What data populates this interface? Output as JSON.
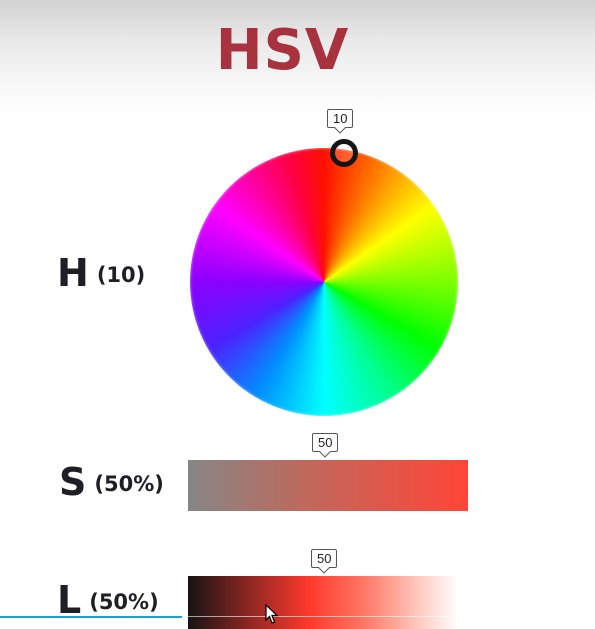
{
  "title": "HSV",
  "hue": {
    "letter": "H",
    "value_text": "(10)",
    "value": 10,
    "bubble": "10"
  },
  "saturation": {
    "letter": "S",
    "value_text": "(50%)",
    "value": 50,
    "bubble": "50"
  },
  "lightness": {
    "letter": "L",
    "value_text": "(50%)",
    "value": 50,
    "bubble": "50"
  },
  "colors": {
    "title": "#a8323e",
    "label": "#1e1e24",
    "accent_line": "#1aa4c9"
  }
}
